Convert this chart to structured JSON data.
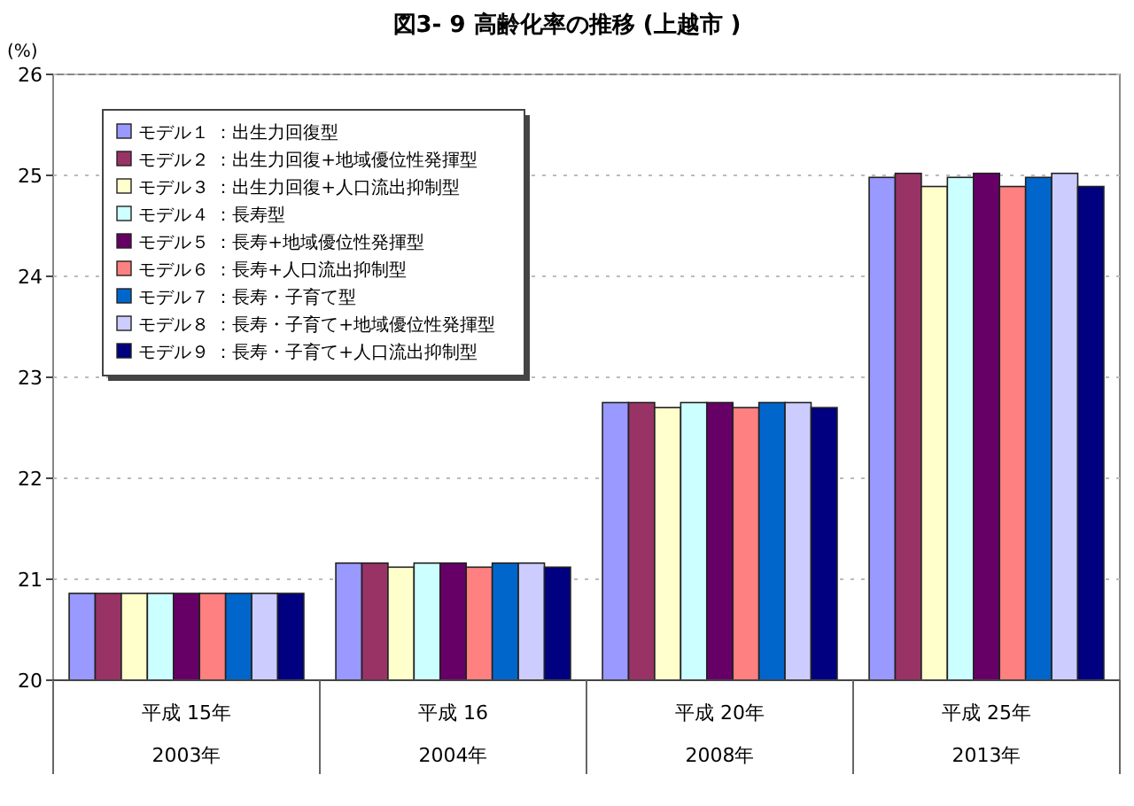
{
  "chart_data": {
    "type": "bar",
    "title": "図3- 9  高齢化率の推移 (上越市 )",
    "ylabel": "(%)",
    "categories": [
      "平成 15年\n2003年",
      "平成 16\n2004年",
      "平成 20年\n2008年",
      "平成 25年\n2013年"
    ],
    "ylim": [
      20,
      26
    ],
    "yticks": [
      20,
      21,
      22,
      23,
      24,
      25,
      26
    ],
    "grid": "y",
    "legend": "top left",
    "series": [
      {
        "name": "モデル１ ：出生力回復型",
        "color": "#9999ff",
        "values": [
          20.86,
          21.16,
          22.75,
          24.98
        ]
      },
      {
        "name": "モデル２ ：出生力回復+地域優位性発揮型",
        "color": "#993366",
        "values": [
          20.86,
          21.16,
          22.75,
          25.02
        ]
      },
      {
        "name": "モデル３ ：出生力回復+人口流出抑制型",
        "color": "#ffffcc",
        "values": [
          20.86,
          21.12,
          22.7,
          24.89
        ]
      },
      {
        "name": "モデル４ ：長寿型",
        "color": "#ccffff",
        "values": [
          20.86,
          21.16,
          22.75,
          24.98
        ]
      },
      {
        "name": "モデル５ ：長寿+地域優位性発揮型",
        "color": "#660066",
        "values": [
          20.86,
          21.16,
          22.75,
          25.02
        ]
      },
      {
        "name": "モデル６ ：長寿+人口流出抑制型",
        "color": "#ff8080",
        "values": [
          20.86,
          21.12,
          22.7,
          24.89
        ]
      },
      {
        "name": "モデル７ ：長寿・子育て型",
        "color": "#0066cc",
        "values": [
          20.86,
          21.16,
          22.75,
          24.98
        ]
      },
      {
        "name": "モデル８ ：長寿・子育て+地域優位性発揮型",
        "color": "#ccccff",
        "values": [
          20.86,
          21.16,
          22.75,
          25.02
        ]
      },
      {
        "name": "モデル９ ：長寿・子育て+人口流出抑制型",
        "color": "#000080",
        "values": [
          20.86,
          21.12,
          22.7,
          24.89
        ]
      }
    ]
  }
}
